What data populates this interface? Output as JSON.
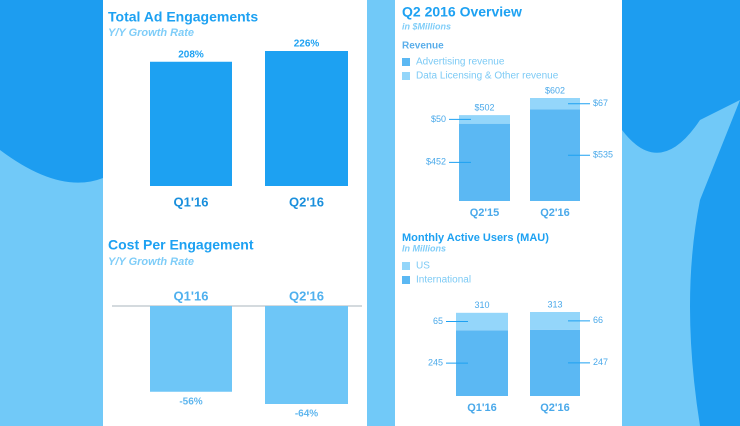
{
  "chart_data": [
    {
      "type": "bar",
      "title": "Total Ad Engagements",
      "subtitle": "Y/Y Growth Rate",
      "categories": [
        "Q1'16",
        "Q2'16"
      ],
      "values": [
        208,
        226
      ],
      "value_labels": [
        "208%",
        "226%"
      ],
      "color": "#1da1f2"
    },
    {
      "type": "bar",
      "title": "Cost Per Engagement",
      "subtitle": "Y/Y Growth Rate",
      "categories": [
        "Q1'16",
        "Q2'16"
      ],
      "values": [
        -56,
        -64
      ],
      "value_labels": [
        "-56%",
        "-64%"
      ],
      "color": "#6ec6f7"
    },
    {
      "type": "stacked_bar",
      "title": "Q2 2016 Overview",
      "subtitle": "in $Millions",
      "section": "Revenue",
      "categories": [
        "Q2'15",
        "Q2'16"
      ],
      "series": [
        {
          "name": "Advertising revenue",
          "color": "#5bb8f3",
          "values": [
            452,
            535
          ],
          "value_labels": [
            "$452",
            "$535"
          ]
        },
        {
          "name": "Data Licensing & Other revenue",
          "color": "#94d6fa",
          "values": [
            50,
            67
          ],
          "value_labels": [
            "$50",
            "$67"
          ]
        }
      ],
      "totals": [
        502,
        602
      ],
      "total_labels": [
        "$502",
        "$602"
      ]
    },
    {
      "type": "stacked_bar",
      "title": "Monthly Active Users (MAU)",
      "subtitle": "In Millions",
      "categories": [
        "Q1'16",
        "Q2'16"
      ],
      "series": [
        {
          "name": "US",
          "color": "#94d6fa",
          "values": [
            65,
            66
          ]
        },
        {
          "name": "International",
          "color": "#5bb8f3",
          "values": [
            245,
            247
          ]
        }
      ],
      "totals": [
        310,
        313
      ]
    }
  ]
}
